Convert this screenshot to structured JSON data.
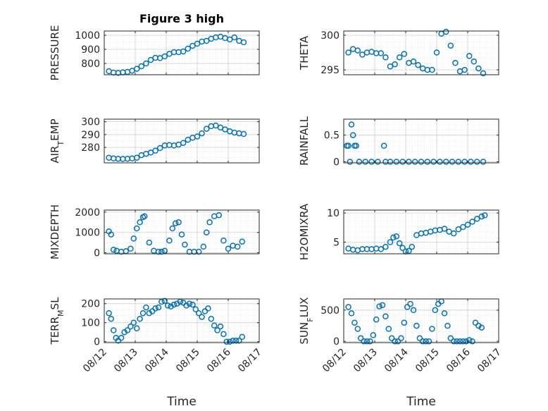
{
  "chart_data": [
    {
      "type": "scatter",
      "title": "Figure 3 high",
      "ylabel": "PRESSURE",
      "ylim": [
        720,
        1030
      ],
      "yticks": [
        800,
        900,
        1000
      ],
      "xlim": [
        0,
        5
      ],
      "xticks": [],
      "xticklabels": [],
      "x": [
        0.15,
        0.3,
        0.45,
        0.6,
        0.75,
        0.9,
        1.05,
        1.2,
        1.35,
        1.5,
        1.65,
        1.8,
        1.95,
        2.1,
        2.25,
        2.4,
        2.55,
        2.7,
        2.85,
        3.0,
        3.15,
        3.3,
        3.45,
        3.6,
        3.75,
        3.9,
        4.05,
        4.2,
        4.35,
        4.5
      ],
      "y": [
        745,
        735,
        733,
        737,
        740,
        748,
        762,
        780,
        800,
        825,
        840,
        838,
        850,
        868,
        880,
        880,
        885,
        905,
        925,
        940,
        955,
        960,
        975,
        985,
        990,
        980,
        970,
        985,
        960,
        950
      ]
    },
    {
      "type": "scatter",
      "title": "",
      "ylabel": "THETA",
      "ylim": [
        294.3,
        300.6
      ],
      "yticks": [
        295,
        300
      ],
      "xlim": [
        0,
        5
      ],
      "xticks": [],
      "xticklabels": [],
      "x": [
        0.15,
        0.3,
        0.45,
        0.6,
        0.75,
        0.9,
        1.05,
        1.2,
        1.35,
        1.5,
        1.65,
        1.8,
        1.95,
        2.1,
        2.25,
        2.4,
        2.55,
        2.7,
        2.85,
        3.0,
        3.15,
        3.3,
        3.45,
        3.6,
        3.75,
        3.9,
        4.05,
        4.2,
        4.35,
        4.5
      ],
      "y": [
        297.5,
        298.0,
        297.8,
        297.2,
        297.5,
        297.6,
        297.4,
        297.4,
        296.8,
        295.5,
        295.8,
        296.8,
        297.3,
        296.0,
        296.2,
        295.7,
        295.2,
        295.0,
        295.0,
        297.5,
        300.2,
        300.5,
        298.5,
        296.0,
        294.8,
        295.0,
        297.0,
        296.2,
        295.2,
        294.5
      ]
    },
    {
      "type": "scatter",
      "title": "",
      "ylabel": "AIR_TEMP",
      "ylim": [
        268,
        302
      ],
      "yticks": [
        280,
        290,
        300
      ],
      "xlim": [
        0,
        5
      ],
      "xticks": [],
      "xticklabels": [],
      "x": [
        0.15,
        0.3,
        0.45,
        0.6,
        0.75,
        0.9,
        1.05,
        1.2,
        1.35,
        1.5,
        1.65,
        1.8,
        1.95,
        2.1,
        2.25,
        2.4,
        2.55,
        2.7,
        2.85,
        3.0,
        3.15,
        3.3,
        3.45,
        3.6,
        3.75,
        3.9,
        4.05,
        4.2,
        4.35,
        4.5
      ],
      "y": [
        272,
        271.4,
        271.2,
        271,
        271.2,
        271.4,
        272,
        274,
        275,
        276,
        277.5,
        279.5,
        281.5,
        281.8,
        281.5,
        282.2,
        283.5,
        286,
        287.5,
        288.5,
        291,
        294.5,
        296.5,
        297,
        295.5,
        294,
        292.5,
        291.5,
        291,
        290.5
      ]
    },
    {
      "type": "scatter",
      "title": "",
      "ylabel": "RAINFALL",
      "ylim": [
        -0.02,
        0.8
      ],
      "yticks": [
        0,
        0.5
      ],
      "xlim": [
        0,
        5
      ],
      "xticks": [],
      "xticklabels": [],
      "x": [
        0.1,
        0.15,
        0.2,
        0.25,
        0.3,
        0.35,
        0.4,
        0.5,
        0.7,
        0.9,
        1.1,
        1.3,
        1.35,
        1.5,
        1.7,
        1.9,
        2.1,
        2.3,
        2.5,
        2.7,
        2.9,
        3.1,
        3.3,
        3.5,
        3.7,
        3.9,
        4.1,
        4.3,
        4.5
      ],
      "y": [
        0.3,
        0.3,
        0,
        0.7,
        0.5,
        0.3,
        0.3,
        0,
        0,
        0,
        0,
        0.3,
        0,
        0,
        0,
        0,
        0,
        0,
        0,
        0,
        0,
        0,
        0,
        0,
        0,
        0,
        0,
        0,
        0
      ]
    },
    {
      "type": "scatter",
      "title": "",
      "ylabel": "MIXDEPTH",
      "ylim": [
        -50,
        2100
      ],
      "yticks": [
        0,
        1000,
        2000
      ],
      "xlim": [
        0,
        5
      ],
      "xticks": [],
      "xticklabels": [],
      "x": [
        0.15,
        0.22,
        0.3,
        0.4,
        0.55,
        0.7,
        0.85,
        0.95,
        1.05,
        1.15,
        1.25,
        1.3,
        1.45,
        1.6,
        1.75,
        1.85,
        1.95,
        2.1,
        2.2,
        2.3,
        2.4,
        2.5,
        2.6,
        2.75,
        2.9,
        3.05,
        3.2,
        3.3,
        3.4,
        3.55,
        3.7,
        3.85,
        4.0,
        4.15,
        4.3,
        4.45
      ],
      "y": [
        1050,
        900,
        150,
        100,
        50,
        80,
        200,
        700,
        1200,
        1500,
        1750,
        1800,
        500,
        100,
        50,
        50,
        100,
        600,
        1200,
        1450,
        1500,
        900,
        400,
        50,
        50,
        50,
        300,
        1000,
        1500,
        1800,
        1850,
        600,
        200,
        350,
        300,
        550
      ]
    },
    {
      "type": "scatter",
      "title": "",
      "ylabel": "H2OMIXRA",
      "ylim": [
        3.0,
        10.5
      ],
      "yticks": [
        5,
        10
      ],
      "xlim": [
        0,
        5
      ],
      "xticks": [],
      "xticklabels": [],
      "x": [
        0.15,
        0.3,
        0.45,
        0.6,
        0.75,
        0.9,
        1.05,
        1.2,
        1.35,
        1.5,
        1.6,
        1.7,
        1.8,
        1.9,
        2.0,
        2.1,
        2.2,
        2.35,
        2.5,
        2.65,
        2.8,
        2.95,
        3.1,
        3.25,
        3.4,
        3.55,
        3.7,
        3.85,
        4.0,
        4.15,
        4.3,
        4.45,
        4.55
      ],
      "y": [
        3.9,
        3.7,
        3.6,
        3.8,
        3.8,
        3.8,
        3.9,
        3.8,
        4.2,
        5.0,
        5.8,
        6.0,
        4.8,
        4.0,
        3.4,
        3.5,
        4.2,
        6.2,
        6.5,
        6.6,
        6.8,
        7.0,
        7.1,
        7.3,
        6.8,
        6.5,
        7.2,
        7.6,
        8.0,
        8.5,
        9.0,
        9.4,
        9.6
      ]
    },
    {
      "type": "scatter",
      "title": "",
      "ylabel": "TERR_MSL",
      "ylim": [
        -5,
        225
      ],
      "yticks": [
        0,
        100,
        200
      ],
      "xlim": [
        0,
        5
      ],
      "xticks": [
        0,
        1,
        2,
        3,
        4,
        5
      ],
      "xticklabels": [
        "08/12",
        "08/13",
        "08/14",
        "08/15",
        "08/16",
        "08/17"
      ],
      "xlabel": "Time",
      "x": [
        0.15,
        0.22,
        0.3,
        0.38,
        0.45,
        0.55,
        0.65,
        0.75,
        0.85,
        0.95,
        1.05,
        1.15,
        1.25,
        1.35,
        1.45,
        1.55,
        1.65,
        1.75,
        1.85,
        1.95,
        2.05,
        2.15,
        2.25,
        2.35,
        2.45,
        2.55,
        2.65,
        2.75,
        2.85,
        2.95,
        3.05,
        3.15,
        3.25,
        3.35,
        3.45,
        3.55,
        3.65,
        3.75,
        3.85,
        3.95,
        4.05,
        4.15,
        4.25,
        4.35,
        4.45
      ],
      "y": [
        150,
        120,
        60,
        20,
        5,
        20,
        50,
        60,
        80,
        100,
        70,
        120,
        150,
        180,
        150,
        160,
        175,
        180,
        210,
        215,
        190,
        185,
        195,
        200,
        210,
        205,
        190,
        200,
        195,
        170,
        150,
        130,
        160,
        175,
        120,
        85,
        60,
        80,
        40,
        0,
        0,
        5,
        5,
        5,
        25
      ]
    },
    {
      "type": "scatter",
      "title": "",
      "ylabel": "SUN_FLUX",
      "ylim": [
        -20,
        680
      ],
      "yticks": [
        0,
        500
      ],
      "xlim": [
        0,
        5
      ],
      "xticks": [
        0,
        1,
        2,
        3,
        4,
        5
      ],
      "xticklabels": [
        "08/12",
        "08/13",
        "08/14",
        "08/15",
        "08/16",
        "08/17"
      ],
      "xlabel": "Time",
      "x": [
        0.15,
        0.25,
        0.35,
        0.45,
        0.55,
        0.65,
        0.75,
        0.85,
        0.95,
        1.05,
        1.15,
        1.25,
        1.35,
        1.45,
        1.55,
        1.65,
        1.75,
        1.85,
        1.95,
        2.05,
        2.15,
        2.25,
        2.35,
        2.45,
        2.55,
        2.65,
        2.75,
        2.85,
        2.95,
        3.05,
        3.15,
        3.25,
        3.35,
        3.45,
        3.55,
        3.65,
        3.75,
        3.85,
        3.95,
        4.05,
        4.15,
        4.25,
        4.35,
        4.45
      ],
      "y": [
        550,
        450,
        300,
        200,
        50,
        0,
        0,
        0,
        100,
        350,
        560,
        580,
        400,
        200,
        50,
        0,
        0,
        50,
        300,
        550,
        600,
        500,
        250,
        50,
        0,
        0,
        0,
        200,
        500,
        600,
        640,
        450,
        250,
        50,
        0,
        0,
        0,
        0,
        0,
        20,
        0,
        300,
        250,
        220
      ]
    }
  ]
}
